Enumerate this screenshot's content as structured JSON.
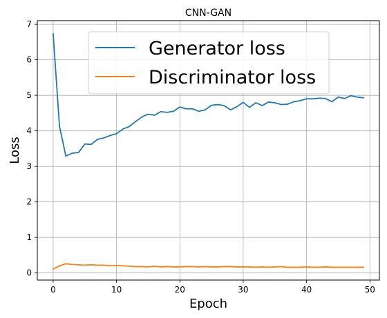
{
  "chart_data": {
    "type": "line",
    "title": "CNN-GAN",
    "xlabel": "Epoch",
    "ylabel": "Loss",
    "xlim": [
      -2.5,
      51.5
    ],
    "ylim": [
      -0.2,
      7.1
    ],
    "xticks": [
      0,
      10,
      20,
      30,
      40,
      50
    ],
    "yticks": [
      0,
      1,
      2,
      3,
      4,
      5,
      6,
      7
    ],
    "grid": true,
    "legend_position": "top-center",
    "series": [
      {
        "name": "Generator loss",
        "color": "#1f77b4",
        "x": [
          0,
          1,
          2,
          3,
          4,
          5,
          6,
          7,
          8,
          9,
          10,
          11,
          12,
          13,
          14,
          15,
          16,
          17,
          18,
          19,
          20,
          21,
          22,
          23,
          24,
          25,
          26,
          27,
          28,
          29,
          30,
          31,
          32,
          33,
          34,
          35,
          36,
          37,
          38,
          39,
          40,
          41,
          42,
          43,
          44,
          45,
          46,
          47,
          48,
          49
        ],
        "values": [
          6.73,
          4.13,
          3.29,
          3.37,
          3.39,
          3.63,
          3.62,
          3.76,
          3.8,
          3.87,
          3.92,
          4.05,
          4.12,
          4.26,
          4.39,
          4.47,
          4.44,
          4.54,
          4.52,
          4.55,
          4.67,
          4.62,
          4.62,
          4.55,
          4.59,
          4.72,
          4.74,
          4.71,
          4.59,
          4.68,
          4.8,
          4.66,
          4.79,
          4.71,
          4.81,
          4.79,
          4.74,
          4.75,
          4.82,
          4.85,
          4.9,
          4.9,
          4.92,
          4.91,
          4.82,
          4.95,
          4.91,
          4.99,
          4.95,
          4.93
        ]
      },
      {
        "name": "Discriminator loss",
        "color": "#ff7f0e",
        "x": [
          0,
          1,
          2,
          3,
          4,
          5,
          6,
          7,
          8,
          9,
          10,
          11,
          12,
          13,
          14,
          15,
          16,
          17,
          18,
          19,
          20,
          21,
          22,
          23,
          24,
          25,
          26,
          27,
          28,
          29,
          30,
          31,
          32,
          33,
          34,
          35,
          36,
          37,
          38,
          39,
          40,
          41,
          42,
          43,
          44,
          45,
          46,
          47,
          48,
          49
        ],
        "values": [
          0.11,
          0.2,
          0.26,
          0.24,
          0.23,
          0.22,
          0.23,
          0.22,
          0.22,
          0.2,
          0.21,
          0.2,
          0.19,
          0.18,
          0.18,
          0.17,
          0.19,
          0.17,
          0.18,
          0.17,
          0.17,
          0.18,
          0.18,
          0.17,
          0.18,
          0.17,
          0.17,
          0.18,
          0.18,
          0.17,
          0.17,
          0.17,
          0.16,
          0.17,
          0.16,
          0.17,
          0.18,
          0.16,
          0.16,
          0.16,
          0.17,
          0.16,
          0.16,
          0.17,
          0.16,
          0.16,
          0.16,
          0.16,
          0.16,
          0.16
        ]
      }
    ]
  }
}
